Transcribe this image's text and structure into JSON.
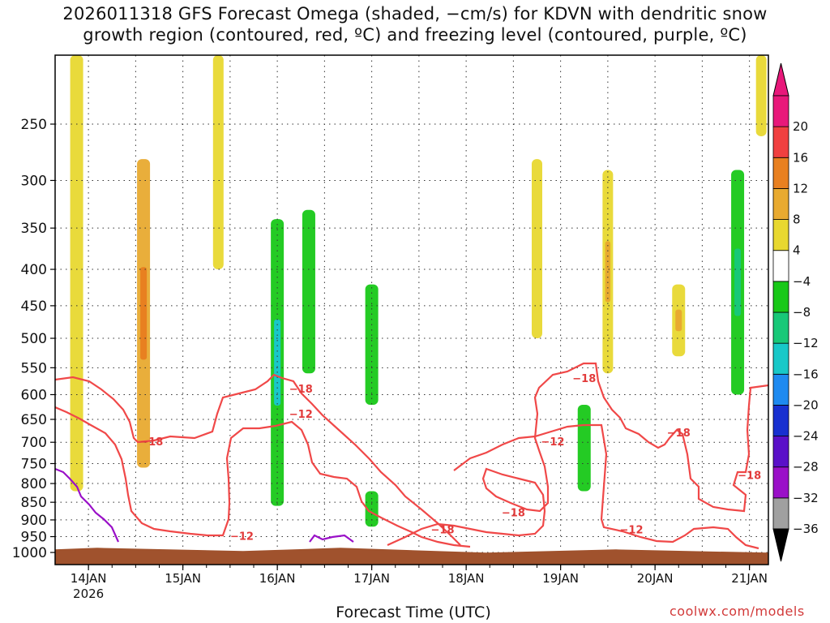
{
  "title_lines": [
    "2026011318 GFS Forecast Omega (shaded, −cm/s) for KDVN with dendritic snow",
    "growth region (contoured, red, ºC) and freezing level (contoured, purple, ºC)"
  ],
  "credit": "coolwx.com/models",
  "chart_data": {
    "type": "heatmap",
    "title": "2026011318 GFS Forecast Omega (shaded, −cm/s) for KDVN with dendritic snow growth region (contoured, red, ºC) and freezing level (contoured, purple, ºC)",
    "xlabel": "Forecast Time (UTC)",
    "ylabel": "",
    "x_range": [
      "2026-01-13T18",
      "2026-01-21T06"
    ],
    "y_range_hPa": [
      1000,
      200
    ],
    "y_scale": "log-pressure",
    "grid": true,
    "x_ticks": [
      {
        "label": "14JAN",
        "sublabel": "2026",
        "time": "2026-01-14T00"
      },
      {
        "label": "15JAN",
        "time": "2026-01-15T00"
      },
      {
        "label": "16JAN",
        "time": "2026-01-16T00"
      },
      {
        "label": "17JAN",
        "time": "2026-01-17T00"
      },
      {
        "label": "18JAN",
        "time": "2026-01-18T00"
      },
      {
        "label": "19JAN",
        "time": "2026-01-19T00"
      },
      {
        "label": "20JAN",
        "time": "2026-01-20T00"
      },
      {
        "label": "21JAN",
        "time": "2026-01-21T00"
      }
    ],
    "y_ticks": [
      250,
      300,
      350,
      400,
      450,
      500,
      550,
      600,
      650,
      700,
      750,
      800,
      850,
      900,
      950,
      1000
    ],
    "colorbar": {
      "levels": [
        -36,
        -32,
        -28,
        -24,
        -20,
        -16,
        -12,
        -8,
        -4,
        4,
        8,
        12,
        16,
        20
      ],
      "colors": [
        "#a0a0a0",
        "#9a10c8",
        "#5a10c8",
        "#1830d0",
        "#1e8af0",
        "#18c8c8",
        "#18c878",
        "#18c818",
        "#ffffff",
        "#e8d830",
        "#e8aa30",
        "#e88020",
        "#f04040",
        "#e8187a"
      ],
      "under_color": "#000000",
      "over_color": "#e8187a"
    },
    "omega_features": [
      {
        "time": "2026-01-13T21",
        "p_top": 200,
        "p_bottom": 820,
        "omega": 6
      },
      {
        "time": "2026-01-14T14",
        "p_top": 280,
        "p_bottom": 760,
        "omega": 8,
        "max_omega": 12
      },
      {
        "time": "2026-01-15T09",
        "p_top": 200,
        "p_bottom": 400,
        "omega": 5
      },
      {
        "time": "2026-01-16T00",
        "p_top": 340,
        "p_bottom": 860,
        "omega": -8,
        "min_omega": -14
      },
      {
        "time": "2026-01-16T08",
        "p_top": 330,
        "p_bottom": 560,
        "omega": -7
      },
      {
        "time": "2026-01-17T00",
        "p_top": 420,
        "p_bottom": 620,
        "omega": -6
      },
      {
        "time": "2026-01-17T00",
        "p_top": 820,
        "p_bottom": 920,
        "omega": -6
      },
      {
        "time": "2026-01-18T18",
        "p_top": 280,
        "p_bottom": 500,
        "omega": 5
      },
      {
        "time": "2026-01-19T06",
        "p_top": 620,
        "p_bottom": 820,
        "omega": -6
      },
      {
        "time": "2026-01-19T12",
        "p_top": 290,
        "p_bottom": 560,
        "omega": 5,
        "max_omega": 9
      },
      {
        "time": "2026-01-20T06",
        "p_top": 420,
        "p_bottom": 530,
        "omega": 6,
        "max_omega": 9
      },
      {
        "time": "2026-01-20T21",
        "p_top": 290,
        "p_bottom": 600,
        "omega": -6,
        "min_omega": -12
      },
      {
        "time": "2026-01-21T03",
        "p_top": 200,
        "p_bottom": 260,
        "omega": 5
      }
    ],
    "contour_labels_dgz": [
      {
        "label": "−18",
        "time": "2026-01-14T16",
        "p": 700
      },
      {
        "label": "−12",
        "time": "2026-01-15T15",
        "p": 950
      },
      {
        "label": "−18",
        "time": "2026-01-16T06",
        "p": 590
      },
      {
        "label": "−12",
        "time": "2026-01-16T06",
        "p": 640
      },
      {
        "label": "−18",
        "time": "2026-01-17T18",
        "p": 930
      },
      {
        "label": "−18",
        "time": "2026-01-18T12",
        "p": 880
      },
      {
        "label": "−12",
        "time": "2026-01-18T22",
        "p": 700
      },
      {
        "label": "−18",
        "time": "2026-01-19T06",
        "p": 570
      },
      {
        "label": "−12",
        "time": "2026-01-19T18",
        "p": 930
      },
      {
        "label": "−18",
        "time": "2026-01-20T06",
        "p": 680
      },
      {
        "label": "−18",
        "time": "2026-01-21T00",
        "p": 780
      }
    ]
  }
}
